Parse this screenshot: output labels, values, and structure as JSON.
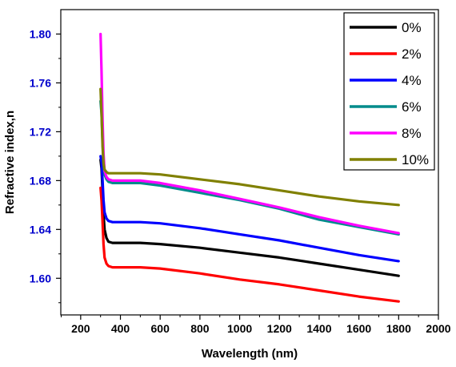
{
  "chart_data": {
    "type": "line",
    "title": "",
    "xlabel": "Wavelength (nm)",
    "ylabel": "Refractive index,n",
    "xlim": [
      100,
      2000
    ],
    "ylim": [
      1.57,
      1.82
    ],
    "x_ticks": [
      200,
      400,
      600,
      800,
      1000,
      1200,
      1400,
      1600,
      1800,
      2000
    ],
    "y_ticks": [
      1.6,
      1.64,
      1.68,
      1.72,
      1.76,
      1.8
    ],
    "y_tick_labels": [
      "1.60",
      "1.64",
      "1.68",
      "1.72",
      "1.76",
      "1.80"
    ],
    "x_tick_color": "#000000",
    "y_tick_color": "#0000cc",
    "grid": false,
    "legend_position": "top-right",
    "series": [
      {
        "name": "0%",
        "color": "#000000",
        "x": [
          300,
          305,
          310,
          315,
          320,
          330,
          340,
          360,
          400,
          500,
          600,
          800,
          1000,
          1200,
          1400,
          1600,
          1800
        ],
        "y": [
          1.697,
          1.69,
          1.672,
          1.652,
          1.64,
          1.633,
          1.63,
          1.629,
          1.629,
          1.629,
          1.628,
          1.625,
          1.621,
          1.617,
          1.612,
          1.607,
          1.602
        ]
      },
      {
        "name": "2%",
        "color": "#ff0000",
        "x": [
          300,
          305,
          310,
          315,
          320,
          330,
          340,
          360,
          400,
          500,
          600,
          800,
          1000,
          1200,
          1400,
          1600,
          1800
        ],
        "y": [
          1.674,
          1.664,
          1.646,
          1.628,
          1.617,
          1.612,
          1.61,
          1.609,
          1.609,
          1.609,
          1.608,
          1.604,
          1.599,
          1.595,
          1.59,
          1.585,
          1.581
        ]
      },
      {
        "name": "4%",
        "color": "#0000ff",
        "x": [
          300,
          305,
          310,
          315,
          320,
          330,
          340,
          360,
          400,
          500,
          600,
          800,
          1000,
          1200,
          1400,
          1600,
          1800
        ],
        "y": [
          1.7,
          1.695,
          1.68,
          1.664,
          1.654,
          1.649,
          1.647,
          1.646,
          1.646,
          1.646,
          1.645,
          1.641,
          1.636,
          1.631,
          1.625,
          1.619,
          1.614
        ]
      },
      {
        "name": "6%",
        "color": "#008b8b",
        "x": [
          300,
          305,
          310,
          315,
          320,
          330,
          340,
          360,
          400,
          500,
          600,
          800,
          1000,
          1200,
          1400,
          1600,
          1800
        ],
        "y": [
          1.745,
          1.735,
          1.712,
          1.694,
          1.685,
          1.681,
          1.679,
          1.678,
          1.678,
          1.678,
          1.676,
          1.67,
          1.664,
          1.657,
          1.648,
          1.642,
          1.636
        ]
      },
      {
        "name": "8%",
        "color": "#ff00ff",
        "x": [
          300,
          305,
          310,
          315,
          320,
          330,
          340,
          360,
          400,
          500,
          600,
          800,
          1000,
          1200,
          1400,
          1600,
          1800
        ],
        "y": [
          1.8,
          1.77,
          1.73,
          1.702,
          1.688,
          1.683,
          1.681,
          1.68,
          1.68,
          1.68,
          1.678,
          1.672,
          1.665,
          1.658,
          1.65,
          1.643,
          1.637
        ]
      },
      {
        "name": "10%",
        "color": "#808000",
        "x": [
          300,
          305,
          310,
          315,
          320,
          330,
          340,
          360,
          400,
          500,
          600,
          800,
          1000,
          1200,
          1400,
          1600,
          1800
        ],
        "y": [
          1.755,
          1.735,
          1.708,
          1.694,
          1.689,
          1.687,
          1.686,
          1.686,
          1.686,
          1.686,
          1.685,
          1.681,
          1.677,
          1.672,
          1.667,
          1.663,
          1.66
        ]
      }
    ]
  }
}
